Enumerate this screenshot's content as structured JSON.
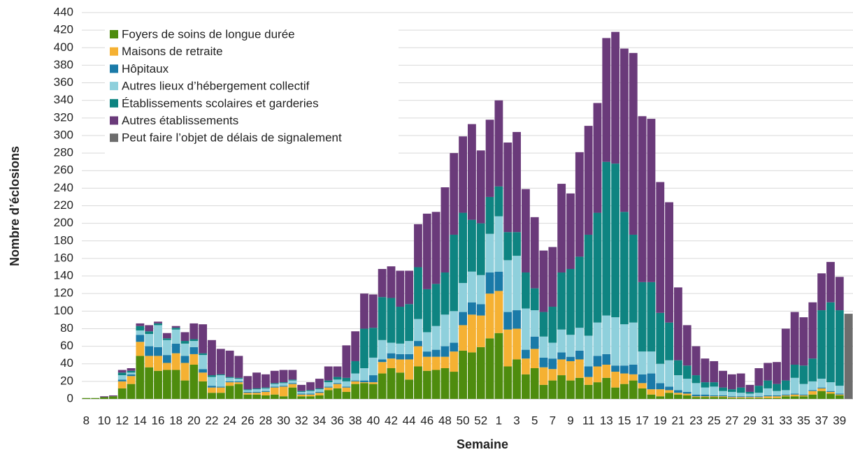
{
  "chart_data": {
    "type": "stacked_bar",
    "x_label": "Semaine",
    "y_label": "Nombre d’éclosions",
    "categories": [
      "8",
      null,
      "10",
      null,
      "12",
      null,
      "14",
      null,
      "16",
      null,
      "18",
      null,
      "20",
      null,
      "22",
      null,
      "24",
      null,
      "26",
      null,
      "28",
      null,
      "30",
      null,
      "32",
      null,
      "34",
      null,
      "36",
      null,
      "38",
      null,
      "40",
      null,
      "42",
      null,
      "44",
      null,
      "46",
      null,
      "48",
      null,
      "50",
      null,
      "52",
      null,
      "1",
      null,
      "3",
      null,
      "5",
      null,
      "7",
      null,
      "9",
      null,
      "11",
      null,
      "13",
      null,
      "15",
      null,
      "17",
      null,
      "19",
      null,
      "21",
      null,
      "23",
      null,
      "25",
      null,
      "27",
      null,
      "29",
      null,
      "31",
      null,
      "33",
      null,
      "35",
      null,
      "37",
      null,
      "39",
      null
    ],
    "series": [
      {
        "name": "Foyers de soins de longue durée",
        "color": "#4e8c0e",
        "values": [
          1,
          1,
          2,
          3,
          12,
          17,
          49,
          36,
          32,
          33,
          33,
          21,
          39,
          20,
          7,
          7,
          15,
          17,
          5,
          5,
          4,
          5,
          3,
          13,
          3,
          3,
          4,
          10,
          12,
          8,
          17,
          18,
          17,
          29,
          35,
          30,
          22,
          37,
          32,
          33,
          35,
          31,
          55,
          53,
          59,
          69,
          75,
          37,
          45,
          28,
          35,
          16,
          21,
          27,
          21,
          24,
          16,
          19,
          24,
          13,
          17,
          21,
          12,
          5,
          3,
          7,
          5,
          4,
          2,
          2,
          2,
          2,
          1,
          1,
          1,
          1,
          1,
          1,
          3,
          3,
          3,
          5,
          9,
          6,
          4,
          0
        ]
      },
      {
        "name": "Maisons de retraite",
        "color": "#f5b133",
        "values": [
          0,
          0,
          0,
          0,
          8,
          9,
          16,
          13,
          17,
          8,
          19,
          20,
          12,
          10,
          6,
          6,
          4,
          2,
          2,
          2,
          4,
          8,
          11,
          4,
          2,
          2,
          3,
          3,
          5,
          5,
          3,
          1,
          2,
          13,
          11,
          15,
          23,
          23,
          16,
          15,
          13,
          23,
          29,
          43,
          36,
          51,
          48,
          42,
          35,
          18,
          22,
          20,
          13,
          18,
          22,
          21,
          9,
          18,
          15,
          18,
          12,
          7,
          6,
          6,
          8,
          3,
          2,
          2,
          1,
          1,
          1,
          1,
          1,
          1,
          1,
          1,
          2,
          2,
          1,
          2,
          1,
          4,
          3,
          2,
          1,
          0
        ]
      },
      {
        "name": "Hôpitaux",
        "color": "#1a7aa8",
        "values": [
          0,
          0,
          0,
          0,
          2,
          2,
          8,
          11,
          10,
          9,
          11,
          8,
          8,
          4,
          2,
          1,
          1,
          1,
          1,
          1,
          1,
          1,
          1,
          1,
          1,
          1,
          1,
          1,
          1,
          1,
          1,
          2,
          8,
          3,
          6,
          6,
          6,
          6,
          6,
          8,
          12,
          10,
          15,
          14,
          13,
          24,
          22,
          20,
          21,
          10,
          14,
          11,
          12,
          8,
          5,
          10,
          12,
          12,
          12,
          7,
          9,
          11,
          10,
          18,
          7,
          4,
          3,
          2,
          2,
          2,
          1,
          1,
          1,
          1,
          1,
          1,
          1,
          1,
          1,
          1,
          1,
          1,
          1,
          1,
          1,
          0
        ]
      },
      {
        "name": "Autres lieux d’hébergement collectif",
        "color": "#8fd0dc",
        "values": [
          0,
          0,
          0,
          0,
          5,
          2,
          5,
          14,
          25,
          17,
          16,
          14,
          7,
          16,
          10,
          13,
          4,
          3,
          2,
          3,
          3,
          3,
          3,
          3,
          2,
          3,
          3,
          5,
          4,
          6,
          8,
          14,
          20,
          22,
          12,
          12,
          15,
          25,
          22,
          27,
          36,
          36,
          33,
          35,
          33,
          44,
          63,
          59,
          62,
          47,
          30,
          24,
          18,
          26,
          25,
          26,
          35,
          38,
          44,
          55,
          47,
          48,
          26,
          25,
          22,
          30,
          17,
          15,
          13,
          8,
          10,
          5,
          5,
          4,
          3,
          4,
          8,
          5,
          5,
          18,
          12,
          10,
          10,
          10,
          9,
          0
        ]
      },
      {
        "name": "Établissements scolaires et garderies",
        "color": "#0e8481",
        "values": [
          0,
          0,
          0,
          0,
          3,
          2,
          5,
          3,
          2,
          2,
          2,
          3,
          2,
          2,
          2,
          1,
          1,
          1,
          1,
          1,
          1,
          1,
          1,
          1,
          1,
          1,
          1,
          2,
          3,
          4,
          14,
          45,
          34,
          49,
          51,
          42,
          42,
          59,
          49,
          48,
          48,
          87,
          80,
          59,
          59,
          42,
          34,
          32,
          27,
          41,
          25,
          28,
          41,
          65,
          75,
          81,
          115,
          125,
          175,
          175,
          128,
          100,
          79,
          79,
          58,
          43,
          17,
          15,
          9,
          6,
          5,
          4,
          3,
          6,
          2,
          8,
          9,
          8,
          11,
          15,
          21,
          26,
          78,
          91,
          86,
          0
        ]
      },
      {
        "name": "Autres établissements",
        "color": "#6a3a7a",
        "values": [
          0,
          0,
          1,
          1,
          3,
          3,
          3,
          7,
          2,
          6,
          2,
          10,
          18,
          33,
          40,
          29,
          30,
          25,
          15,
          18,
          15,
          14,
          14,
          11,
          7,
          9,
          11,
          16,
          12,
          37,
          34,
          40,
          38,
          32,
          36,
          41,
          38,
          49,
          86,
          82,
          97,
          93,
          87,
          109,
          83,
          88,
          98,
          102,
          114,
          95,
          81,
          70,
          68,
          101,
          86,
          119,
          124,
          125,
          141,
          150,
          186,
          207,
          189,
          186,
          149,
          137,
          83,
          46,
          33,
          27,
          24,
          19,
          17,
          16,
          8,
          20,
          20,
          25,
          59,
          60,
          55,
          64,
          42,
          46,
          38,
          0
        ]
      },
      {
        "name": "Peut faire l’objet de délais de signalement",
        "color": "#6d6d6d",
        "values": [
          0,
          0,
          0,
          0,
          0,
          0,
          0,
          0,
          0,
          0,
          0,
          0,
          0,
          0,
          0,
          0,
          0,
          0,
          0,
          0,
          0,
          0,
          0,
          0,
          0,
          0,
          0,
          0,
          0,
          0,
          0,
          0,
          0,
          0,
          0,
          0,
          0,
          0,
          0,
          0,
          0,
          0,
          0,
          0,
          0,
          0,
          0,
          0,
          0,
          0,
          0,
          0,
          0,
          0,
          0,
          0,
          0,
          0,
          0,
          0,
          0,
          0,
          0,
          0,
          0,
          0,
          0,
          0,
          0,
          0,
          0,
          0,
          0,
          0,
          0,
          0,
          0,
          0,
          0,
          0,
          0,
          0,
          0,
          0,
          0,
          97
        ]
      }
    ],
    "ylim": [
      0,
      440
    ],
    "yticks": [
      0,
      20,
      40,
      60,
      80,
      100,
      120,
      140,
      160,
      180,
      200,
      220,
      240,
      260,
      280,
      300,
      320,
      340,
      360,
      380,
      400,
      420,
      440
    ],
    "grid": true
  }
}
